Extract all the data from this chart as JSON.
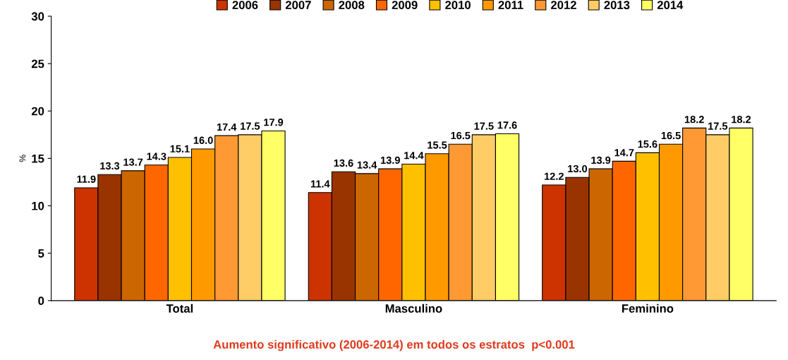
{
  "chart_data": {
    "type": "bar",
    "categories": [
      "Total",
      "Masculino",
      "Feminino"
    ],
    "ylabel": "%",
    "ylim": [
      0,
      30
    ],
    "yticks": [
      0,
      5,
      10,
      15,
      20,
      25,
      30
    ],
    "grid": false,
    "legend": "top",
    "annotations": [
      "Aumento significativo (2006-2014) em todos os estratos  p<0.001"
    ],
    "series": [
      {
        "name": "2006",
        "color": "#cc3300",
        "values": [
          11.9,
          11.4,
          12.2
        ],
        "value_labels": [
          "11.9",
          "11.4",
          "12.2"
        ]
      },
      {
        "name": "2007",
        "color": "#993300",
        "values": [
          13.3,
          13.6,
          13.0
        ],
        "value_labels": [
          "13.3",
          "13.6",
          "13.0"
        ]
      },
      {
        "name": "2008",
        "color": "#cc6600",
        "values": [
          13.7,
          13.4,
          13.9
        ],
        "value_labels": [
          "13.7",
          "13.4",
          "13.9"
        ]
      },
      {
        "name": "2009",
        "color": "#ff6600",
        "values": [
          14.3,
          13.9,
          14.7
        ],
        "value_labels": [
          "14.3",
          "13.9",
          "14.7"
        ]
      },
      {
        "name": "2010",
        "color": "#ffc000",
        "values": [
          15.1,
          14.4,
          15.6
        ],
        "value_labels": [
          "15.1",
          "14.4",
          "15.6"
        ]
      },
      {
        "name": "2011",
        "color": "#ff9900",
        "values": [
          16.0,
          15.5,
          16.5
        ],
        "value_labels": [
          "16.0",
          "15.5",
          "16.5"
        ]
      },
      {
        "name": "2012",
        "color": "#ff9933",
        "values": [
          17.4,
          16.5,
          18.2
        ],
        "value_labels": [
          "17.4",
          "16.5",
          "18.2"
        ]
      },
      {
        "name": "2013",
        "color": "#ffcc66",
        "values": [
          17.5,
          17.5,
          17.5
        ],
        "value_labels": [
          "17.5",
          "17.5",
          "17.5"
        ]
      },
      {
        "name": "2014",
        "color": "#ffff66",
        "values": [
          17.9,
          17.6,
          18.2
        ],
        "value_labels": [
          "17.9",
          "17.6",
          "18.2"
        ]
      }
    ]
  }
}
